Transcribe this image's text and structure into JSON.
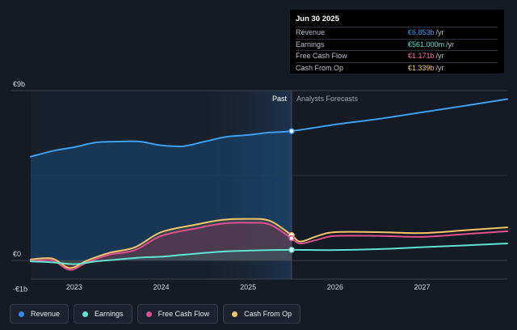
{
  "tooltip": {
    "date": "Jun 30 2025",
    "rows": [
      {
        "label": "Revenue",
        "value": "€6.853b",
        "unit": "/yr",
        "color": "#3e9ff0"
      },
      {
        "label": "Earnings",
        "value": "€561.000m",
        "unit": "/yr",
        "color": "#5fe3d2"
      },
      {
        "label": "Free Cash Flow",
        "value": "€1.171b",
        "unit": "/yr",
        "color": "#ff6aa8"
      },
      {
        "label": "Cash From Op",
        "value": "€1.339b",
        "unit": "/yr",
        "color": "#f5c56b"
      }
    ]
  },
  "legend": [
    {
      "label": "Revenue",
      "color": "#2f8ff0"
    },
    {
      "label": "Earnings",
      "color": "#5fe3d2"
    },
    {
      "label": "Free Cash Flow",
      "color": "#e0508f"
    },
    {
      "label": "Cash From Op",
      "color": "#f5c56b"
    }
  ],
  "chart_data": {
    "type": "line",
    "ylim": [
      -1,
      9
    ],
    "y_tick_labels": [
      "€9b",
      "€0",
      "-€1b"
    ],
    "x_tick_labels": [
      "2023",
      "2024",
      "2025",
      "2026",
      "2027"
    ],
    "x_ticks": [
      2023,
      2024,
      2025,
      2026,
      2027
    ],
    "xlim": [
      2022.5,
      2027.98
    ],
    "divider_x": 2025.5,
    "past_label": "Past",
    "forecast_label": "Analysts Forecasts",
    "series": [
      {
        "name": "Revenue",
        "color": "#3e9ff0",
        "x": [
          2022.5,
          2022.75,
          2023.0,
          2023.25,
          2023.5,
          2023.75,
          2024.0,
          2024.25,
          2024.5,
          2024.75,
          2025.0,
          2025.25,
          2025.5,
          2026.0,
          2026.5,
          2027.0,
          2027.5,
          2027.98
        ],
        "y": [
          5.5,
          5.8,
          6.0,
          6.25,
          6.3,
          6.3,
          6.1,
          6.05,
          6.3,
          6.55,
          6.65,
          6.78,
          6.853,
          7.2,
          7.5,
          7.85,
          8.2,
          8.55
        ]
      },
      {
        "name": "Cash From Op",
        "color": "#f5c56b",
        "x": [
          2022.5,
          2022.75,
          2022.95,
          2023.15,
          2023.4,
          2023.7,
          2024.0,
          2024.4,
          2024.7,
          2025.0,
          2025.25,
          2025.5,
          2025.6,
          2025.8,
          2026.0,
          2026.5,
          2027.0,
          2027.5,
          2027.98
        ],
        "y": [
          0.05,
          0.1,
          -0.4,
          0.0,
          0.4,
          0.7,
          1.5,
          1.9,
          2.15,
          2.2,
          2.1,
          1.339,
          1.0,
          1.3,
          1.5,
          1.5,
          1.45,
          1.6,
          1.75
        ]
      },
      {
        "name": "Free Cash Flow",
        "color": "#e0508f",
        "x": [
          2022.5,
          2022.75,
          2022.95,
          2023.15,
          2023.4,
          2023.7,
          2024.0,
          2024.4,
          2024.7,
          2025.0,
          2025.25,
          2025.5,
          2025.6,
          2025.8,
          2026.0,
          2026.5,
          2027.0,
          2027.5,
          2027.98
        ],
        "y": [
          -0.05,
          0.0,
          -0.5,
          -0.1,
          0.3,
          0.55,
          1.3,
          1.7,
          1.95,
          2.0,
          1.9,
          1.171,
          0.9,
          1.1,
          1.3,
          1.3,
          1.25,
          1.4,
          1.55
        ]
      },
      {
        "name": "Earnings",
        "color": "#5fe3d2",
        "x": [
          2022.5,
          2022.75,
          2023.0,
          2023.25,
          2023.5,
          2023.75,
          2024.0,
          2024.25,
          2024.5,
          2024.75,
          2025.0,
          2025.25,
          2025.5,
          2026.0,
          2026.5,
          2027.0,
          2027.5,
          2027.98
        ],
        "y": [
          -0.05,
          -0.1,
          -0.2,
          -0.05,
          0.05,
          0.15,
          0.2,
          0.3,
          0.4,
          0.48,
          0.52,
          0.55,
          0.561,
          0.55,
          0.6,
          0.7,
          0.8,
          0.9
        ]
      }
    ]
  }
}
